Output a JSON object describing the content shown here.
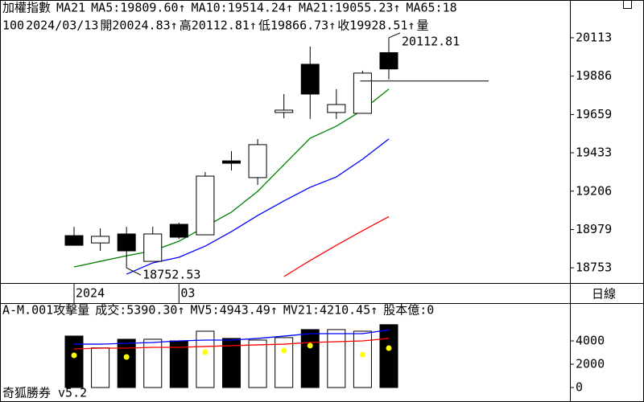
{
  "header": [
    {
      "text": "加權指數",
      "color": "#000000"
    },
    {
      "text": "MA21",
      "color": "#000000"
    },
    {
      "text": "MA5:19809.60↑",
      "color": "#008000"
    },
    {
      "text": "MA10:19514.24↑",
      "color": "#0000ff"
    },
    {
      "text": "MA21:19055.23↑",
      "color": "#ff0000"
    },
    {
      "text": "MA65:18",
      "color": "#ff00ff"
    }
  ],
  "info": [
    "100",
    "2024/03/13",
    "開20024.83↑",
    "高20112.81↑",
    "低19866.73↑",
    "收19928.51↑",
    "量"
  ],
  "period_label": "日線",
  "footer": "奇狐勝券 v5.2",
  "chart_data": [
    {
      "type": "candlestick",
      "categories": [
        "2024",
        null,
        null,
        null,
        "03",
        null,
        null,
        null,
        null,
        null,
        null,
        null,
        null
      ],
      "open": [
        18943,
        18900,
        18953,
        18791,
        19010,
        18948,
        19385,
        19286,
        19671,
        19956,
        19671,
        19666,
        20024.83
      ],
      "high": [
        18995,
        18986,
        18995,
        18996,
        19019,
        19319,
        19443,
        19514,
        19780,
        20061,
        19809,
        19918,
        20112.81
      ],
      "low": [
        18886,
        18853,
        18752.53,
        18791,
        18924,
        18948,
        19328,
        19243,
        19637,
        19633,
        19633,
        19666,
        19866.73
      ],
      "close": [
        18886,
        18939,
        18853,
        18953,
        18934,
        19295,
        19371,
        19481,
        19685,
        19780,
        19718,
        19904,
        19928.51
      ],
      "up_color": "#ffffff",
      "down_color": "#000000",
      "high_label": "20112.81",
      "low_label": "18752.53",
      "lines": [
        {
          "color": "#008000",
          "values": [
            18758,
            18791,
            18824,
            18853,
            18910,
            18996,
            19082,
            19205,
            19362,
            19519,
            19590,
            19685,
            19809.6
          ]
        },
        {
          "color": "#0000ff",
          "values": [
            null,
            null,
            18715,
            18782,
            18815,
            18881,
            18967,
            19062,
            19148,
            19229,
            19290,
            19395,
            19514.24
          ]
        },
        {
          "color": "#ff0000",
          "values": [
            null,
            null,
            null,
            null,
            null,
            null,
            null,
            null,
            18701,
            18796,
            18886,
            18972,
            19055.23
          ]
        }
      ],
      "ylim": [
        18663,
        20241
      ],
      "yticks": [
        18753,
        18979,
        19206,
        19433,
        19659,
        19886,
        20113
      ]
    },
    {
      "type": "bar",
      "header": [
        {
          "text": "A-M.001攻擊量",
          "color": "#000000"
        },
        {
          "text": "成交:5390.30↑",
          "color": "#008000"
        },
        {
          "text": "MV5:4943.49↑",
          "color": "#0000ff"
        },
        {
          "text": "MV21:4210.45↑",
          "color": "#ff0000"
        },
        {
          "text": "股本億:0",
          "color": "#ff00ff"
        }
      ],
      "values": [
        4414,
        3400,
        4140,
        4140,
        4000,
        4830,
        4210,
        4070,
        4280,
        4970,
        4970,
        4830,
        5390.3
      ],
      "lines": [
        {
          "color": "#0000ff",
          "values": [
            3720,
            3720,
            3790,
            3860,
            4000,
            4070,
            4070,
            4210,
            4410,
            4620,
            4620,
            4620,
            4943.49
          ]
        },
        {
          "color": "#ff0000",
          "values": [
            3310,
            3380,
            3380,
            3450,
            3450,
            3520,
            3590,
            3660,
            3720,
            3860,
            3930,
            4000,
            4210.45
          ]
        }
      ],
      "markers": {
        "color": "#ffff00",
        "values": [
          2760,
          null,
          2620,
          null,
          null,
          3030,
          null,
          null,
          3170,
          3590,
          null,
          2830,
          3380
        ]
      },
      "ylim": [
        0,
        7240
      ],
      "yticks": [
        0,
        2000,
        4000
      ]
    }
  ]
}
